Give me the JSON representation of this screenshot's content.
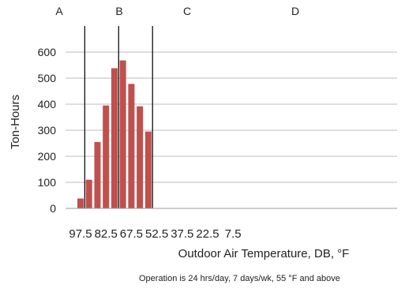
{
  "chart_data": {
    "type": "bar",
    "x": [
      97.5,
      92.5,
      87.5,
      82.5,
      77.5,
      72.5,
      67.5,
      62.5,
      57.5,
      52.5,
      47.5,
      42.5,
      37.5,
      32.5,
      27.5,
      22.5,
      17.5,
      12.5,
      7.5
    ],
    "values": [
      38,
      110,
      255,
      395,
      538,
      568,
      478,
      392,
      295,
      0,
      0,
      0,
      0,
      0,
      0,
      0,
      0,
      0,
      0
    ],
    "xtick_labels": [
      "97.5",
      "82.5",
      "67.5",
      "52.5",
      "37.5",
      "22.5",
      "7.5"
    ],
    "ytick_labels": [
      "0",
      "100",
      "200",
      "300",
      "400",
      "500",
      "600"
    ],
    "ylim": [
      0,
      700
    ],
    "xlabel": "Outdoor Air Temperature, DB, °F",
    "ylabel": "Ton-Hours",
    "grid": true,
    "bar_color": "#c0504d",
    "zones": [
      {
        "label": "A",
        "x_start": 97.5,
        "x_end": 95
      },
      {
        "label": "B",
        "x_start": 95,
        "x_end": 75
      },
      {
        "label": "C",
        "x_start": 75,
        "x_end": 55
      },
      {
        "label": "D",
        "x_start": 55,
        "x_end": 7.5
      }
    ],
    "zone_boundaries": [
      95,
      75,
      55
    ],
    "note": "Operation is 24 hrs/day, 7 days/wk, 55 °F and above"
  }
}
